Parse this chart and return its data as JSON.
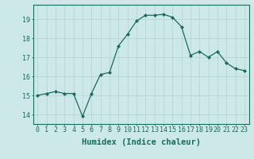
{
  "x": [
    0,
    1,
    2,
    3,
    4,
    5,
    6,
    7,
    8,
    9,
    10,
    11,
    12,
    13,
    14,
    15,
    16,
    17,
    18,
    19,
    20,
    21,
    22,
    23
  ],
  "y": [
    15.0,
    15.1,
    15.2,
    15.1,
    15.1,
    13.9,
    15.1,
    16.1,
    16.2,
    17.6,
    18.2,
    18.9,
    19.2,
    19.2,
    19.25,
    19.1,
    18.6,
    17.1,
    17.3,
    17.0,
    17.3,
    16.7,
    16.4,
    16.3
  ],
  "line_color": "#1a6b5a",
  "marker": "D",
  "marker_size": 2,
  "bg_color": "#cce8e8",
  "grid_color": "#b8d4d4",
  "xlabel": "Humidex (Indice chaleur)",
  "ylim": [
    13.5,
    19.75
  ],
  "xlim": [
    -0.5,
    23.5
  ],
  "yticks": [
    14,
    15,
    16,
    17,
    18,
    19
  ],
  "xticks": [
    0,
    1,
    2,
    3,
    4,
    5,
    6,
    7,
    8,
    9,
    10,
    11,
    12,
    13,
    14,
    15,
    16,
    17,
    18,
    19,
    20,
    21,
    22,
    23
  ],
  "tick_label_fontsize": 6.0,
  "xlabel_fontsize": 7.5,
  "tick_color": "#1a6b5a",
  "axis_color": "#1a6b5a",
  "linewidth": 0.9
}
